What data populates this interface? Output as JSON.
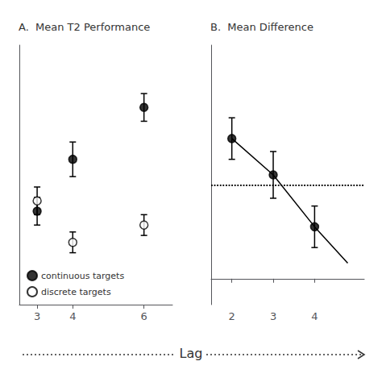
{
  "chart_data": [
    {
      "type": "scatter",
      "title": "A.  Mean T2 Performance",
      "xlabel": "Lag",
      "series": [
        {
          "name": "continuous targets",
          "type": "scatter",
          "marker": "filled",
          "color": "#000000",
          "x": [
            3,
            4,
            6
          ],
          "values": [
            0.47,
            0.62,
            0.77
          ],
          "yerr": [
            0.04,
            0.05,
            0.04
          ]
        },
        {
          "name": "discrete targets",
          "type": "scatter",
          "marker": "open",
          "color": "#000000",
          "x": [
            3,
            4,
            6
          ],
          "values": [
            0.5,
            0.38,
            0.43
          ],
          "yerr": [
            0.04,
            0.03,
            0.03
          ]
        }
      ],
      "xlim": [
        2.5,
        6.8
      ],
      "xticks": [
        3,
        4,
        6
      ],
      "ylim": [
        0.2,
        0.95
      ],
      "tick_labels": "x",
      "grid": false,
      "legend": "lower left"
    },
    {
      "type": "scatter",
      "title": "B.  Mean Difference",
      "series": [
        {
          "type": "line",
          "marker": "none",
          "color": "#000000",
          "x": [
            2,
            3,
            4,
            4.8
          ],
          "values": [
            0.27,
            0.2,
            0.1,
            0.03
          ]
        },
        {
          "type": "scatter",
          "marker": "filled",
          "color": "#000000",
          "x": [
            2,
            3,
            4
          ],
          "values": [
            0.27,
            0.2,
            0.1
          ],
          "yerr": [
            0.04,
            0.045,
            0.04
          ]
        }
      ],
      "hlines": [
        {
          "value": 0.18,
          "line_style": "dotted"
        }
      ],
      "xlim": [
        1.5,
        5.2
      ],
      "xticks": [
        2,
        3,
        4
      ],
      "ylim": [
        -0.05,
        0.45
      ],
      "tick_labels": "x",
      "grid": false
    }
  ]
}
